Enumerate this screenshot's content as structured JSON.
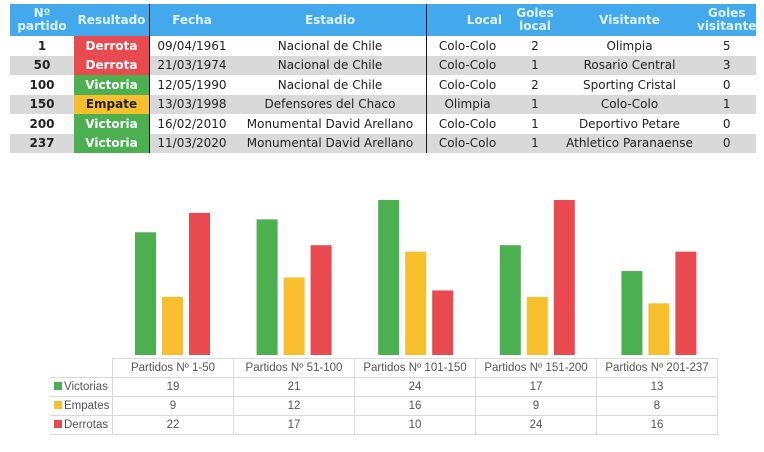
{
  "table": {
    "headers": [
      "Nº partido",
      "Resultado",
      "Fecha",
      "Estadio",
      "Local",
      "Goles local",
      "Visitante",
      "Goles visitante"
    ],
    "rows": [
      {
        "n": "1",
        "resultado": "Derrota",
        "fecha": "09/04/1961",
        "estadio": "Nacional de Chile",
        "local": "Colo-Colo",
        "gl": "2",
        "visitante": "Olimpia",
        "gv": "5"
      },
      {
        "n": "50",
        "resultado": "Derrota",
        "fecha": "21/03/1974",
        "estadio": "Nacional de Chile",
        "local": "Colo-Colo",
        "gl": "1",
        "visitante": "Rosario Central",
        "gv": "3"
      },
      {
        "n": "100",
        "resultado": "Victoria",
        "fecha": "12/05/1990",
        "estadio": "Nacional de Chile",
        "local": "Colo-Colo",
        "gl": "2",
        "visitante": "Sporting Cristal",
        "gv": "0"
      },
      {
        "n": "150",
        "resultado": "Empate",
        "fecha": "13/03/1998",
        "estadio": "Defensores del Chaco",
        "local": "Olimpia",
        "gl": "1",
        "visitante": "Colo-Colo",
        "gv": "1"
      },
      {
        "n": "200",
        "resultado": "Victoria",
        "fecha": "16/02/2010",
        "estadio": "Monumental David Arellano",
        "local": "Colo-Colo",
        "gl": "1",
        "visitante": "Deportivo Petare",
        "gv": "0"
      },
      {
        "n": "237",
        "resultado": "Victoria",
        "fecha": "11/03/2020",
        "estadio": "Monumental David Arellano",
        "local": "Colo-Colo",
        "gl": "1",
        "visitante": "Athletico Paranaense",
        "gv": "0"
      }
    ],
    "result_colors": {
      "Derrota": "#e84a4f",
      "Victoria": "#4caf50",
      "Empate": "#f7bf2e"
    }
  },
  "chart_data": {
    "type": "bar",
    "categories": [
      "Partidos Nº 1-50",
      "Partidos Nº 51-100",
      "Partidos Nº 101-150",
      "Partidos Nº 151-200",
      "Partidos Nº 201-237"
    ],
    "series": [
      {
        "name": "Victorias",
        "values": [
          19,
          21,
          24,
          17,
          13
        ],
        "color": "#4caf50"
      },
      {
        "name": "Empates",
        "values": [
          9,
          12,
          16,
          9,
          8
        ],
        "color": "#f7bf2e"
      },
      {
        "name": "Derrotas",
        "values": [
          22,
          17,
          10,
          24,
          16
        ],
        "color": "#e84a4f"
      }
    ],
    "ylim": [
      0,
      24
    ],
    "grid": false,
    "legend": "data-table"
  }
}
